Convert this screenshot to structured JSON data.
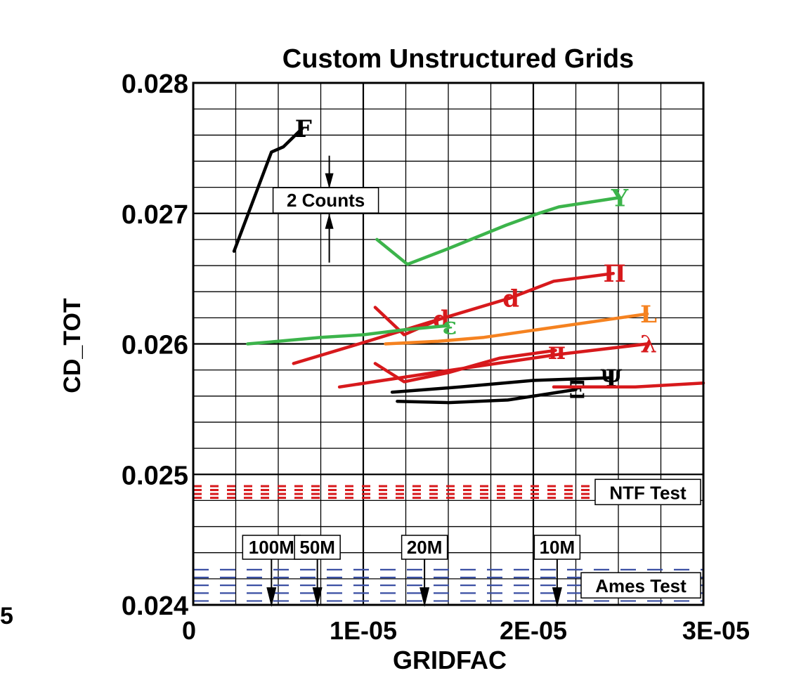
{
  "chart_data": {
    "type": "line",
    "title": "Custom Unstructured Grids",
    "xlabel": "GRIDFAC",
    "ylabel": "CD_TOT",
    "xlim": [
      0,
      3e-05
    ],
    "ylim": [
      0.024,
      0.028
    ],
    "x_ticks": [
      "0",
      "1E-05",
      "2E-05",
      "3E-05"
    ],
    "y_ticks": [
      "0.024",
      "0.025",
      "0.026",
      "0.027",
      "0.028"
    ],
    "grid": true,
    "series": [
      {
        "marker": "F",
        "color": "#000000",
        "points": [
          [
            2.4e-06,
            0.02671
          ],
          [
            4.6e-06,
            0.02747
          ],
          [
            5.3e-06,
            0.02751
          ],
          [
            6.4e-06,
            0.02765
          ]
        ]
      },
      {
        "marker": "Υ",
        "color": "#3cb44b",
        "points": [
          [
            1.08e-05,
            0.0268
          ],
          [
            1.26e-05,
            0.02661
          ],
          [
            1.5e-05,
            0.02673
          ],
          [
            1.84e-05,
            0.02691
          ],
          [
            2.03e-05,
            0.027
          ],
          [
            2.15e-05,
            0.02705
          ],
          [
            2.5e-05,
            0.02712
          ]
        ]
      },
      {
        "marker": "Π",
        "color": "#d7191c",
        "points": [
          [
            1.86e-05,
            0.02635
          ],
          [
            2.12e-05,
            0.02648
          ],
          [
            2.47e-05,
            0.02654
          ]
        ]
      },
      {
        "marker": "d",
        "color": "#d7191c",
        "points": [
          [
            5.9e-06,
            0.02585
          ],
          [
            1e-05,
            0.02601
          ],
          [
            1.45e-05,
            0.02619
          ],
          [
            1.86e-05,
            0.02635
          ]
        ]
      },
      {
        "marker": "d",
        "color": "#d7191c",
        "points": [
          [
            1.07e-05,
            0.02628
          ],
          [
            1.24e-05,
            0.02607
          ],
          [
            1.45e-05,
            0.02619
          ]
        ]
      },
      {
        "marker": "ε",
        "color": "#3cb44b",
        "points": [
          [
            3.2e-06,
            0.026
          ],
          [
            5e-06,
            0.02602
          ],
          [
            7.5e-06,
            0.02605
          ],
          [
            1e-05,
            0.02607
          ],
          [
            1.25e-05,
            0.02611
          ],
          [
            1.5e-05,
            0.02614
          ]
        ]
      },
      {
        "marker": "L",
        "color": "#f58220",
        "points": [
          [
            1.13e-05,
            0.026
          ],
          [
            1.44e-05,
            0.02602
          ],
          [
            1.71e-05,
            0.02605
          ],
          [
            2.67e-05,
            0.02623
          ]
        ]
      },
      {
        "marker": "λ",
        "color": "#d7191c",
        "points": [
          [
            8.6e-06,
            0.02567
          ],
          [
            1.47e-05,
            0.02579
          ],
          [
            2.15e-05,
            0.02592
          ],
          [
            2.67e-05,
            0.026
          ]
        ]
      },
      {
        "marker": "π",
        "color": "#d7191c",
        "points": [
          [
            1.07e-05,
            0.02585
          ],
          [
            1.24e-05,
            0.02571
          ],
          [
            1.5e-05,
            0.02578
          ],
          [
            1.8e-05,
            0.02589
          ],
          [
            2.13e-05,
            0.02595
          ]
        ]
      },
      {
        "marker": "Ψ",
        "color": "#000000",
        "points": [
          [
            1.17e-05,
            0.02563
          ],
          [
            1.57e-05,
            0.02567
          ],
          [
            2e-05,
            0.02572
          ],
          [
            2.45e-05,
            0.02574
          ]
        ]
      },
      {
        "marker": "Ξ",
        "color": "#000000",
        "points": [
          [
            1.2e-05,
            0.02556
          ],
          [
            1.5e-05,
            0.02555
          ],
          [
            1.85e-05,
            0.02557
          ],
          [
            2.1e-05,
            0.02562
          ],
          [
            2.25e-05,
            0.02565
          ]
        ]
      },
      {
        "marker": "",
        "color": "#d7191c",
        "points": [
          [
            2.12e-05,
            0.02567
          ],
          [
            2.6e-05,
            0.02567
          ],
          [
            3e-05,
            0.0257
          ]
        ]
      }
    ],
    "reference_bands": [
      {
        "label": "NTF Test",
        "color": "#d7191c",
        "y": [
          0.02491,
          0.02488,
          0.02485,
          0.02482
        ]
      },
      {
        "label": "Ames Test",
        "color": "#3a4fa3",
        "y": [
          0.02427,
          0.02421,
          0.02415,
          0.02409,
          0.02403
        ]
      }
    ],
    "annotations": [
      {
        "label": "2 Counts",
        "x": 8e-06,
        "y_from": 0.027,
        "y_to": 0.0272
      },
      {
        "label": "100M",
        "x": 4.6e-06
      },
      {
        "label": "50M",
        "x": 7.3e-06
      },
      {
        "label": "20M",
        "x": 1.36e-05
      },
      {
        "label": "10M",
        "x": 2.14e-05
      }
    ]
  },
  "stray_label": "5"
}
